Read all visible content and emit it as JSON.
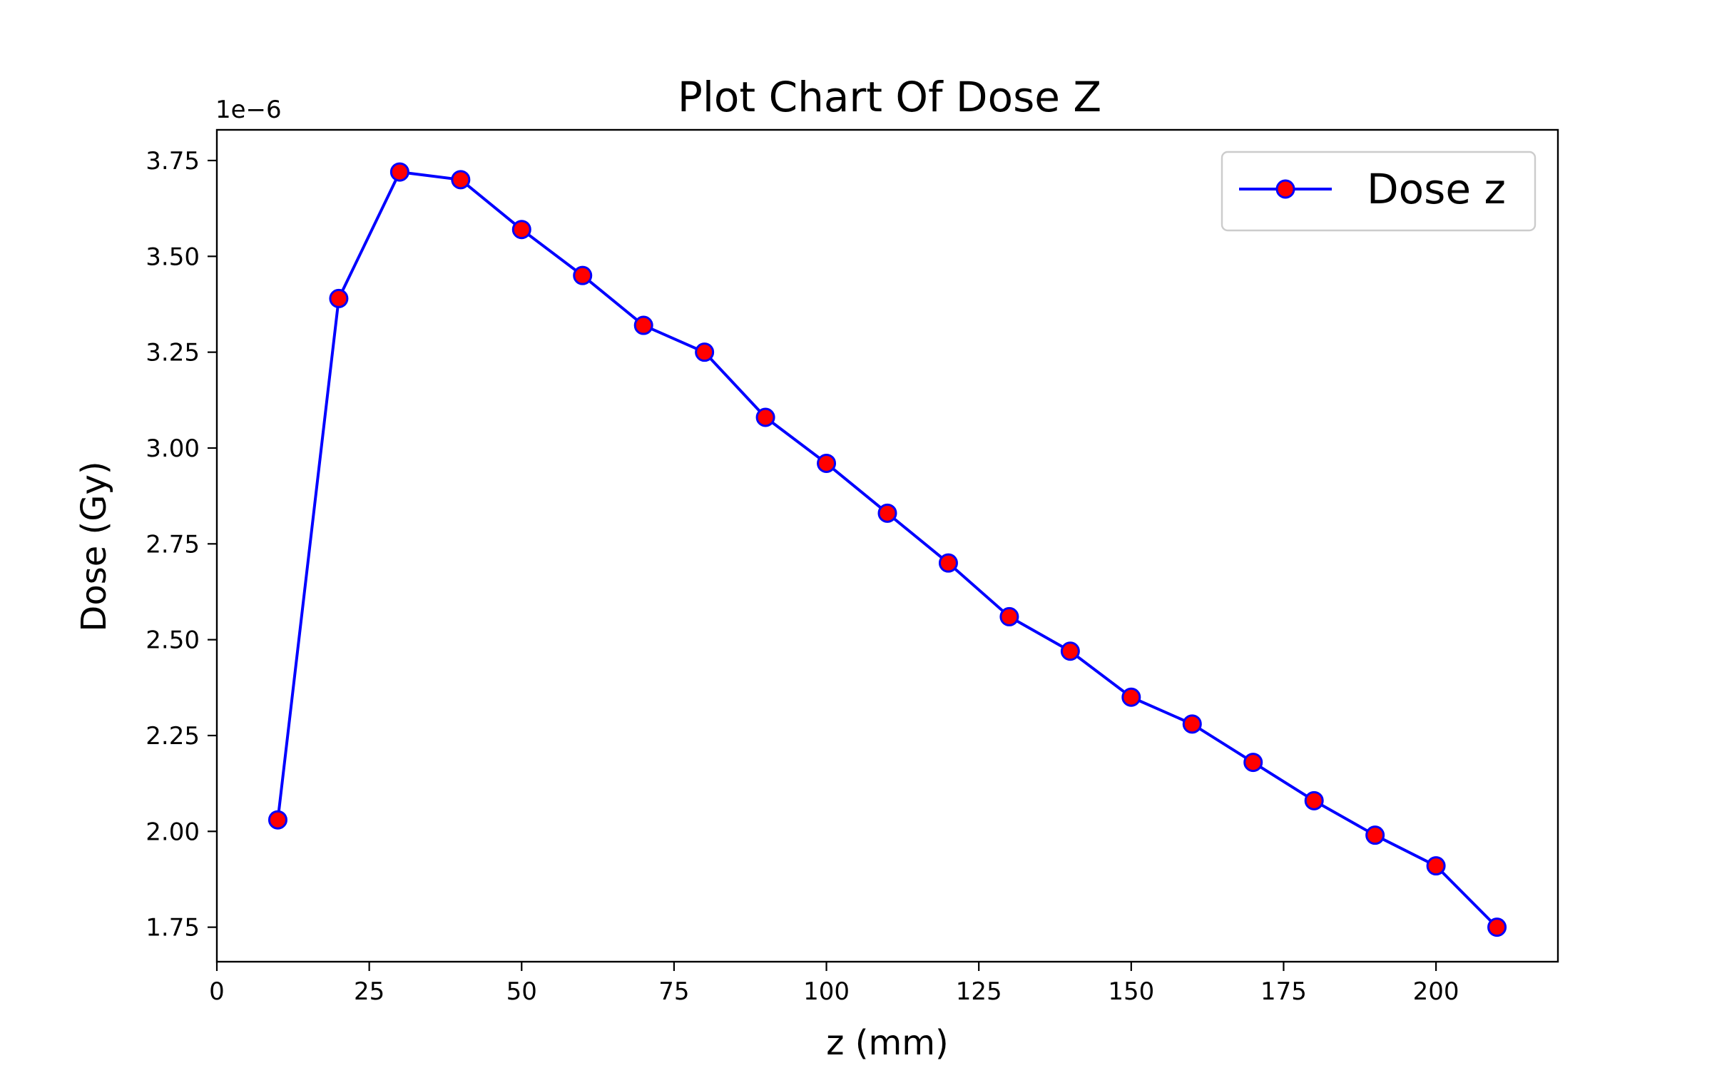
{
  "chart_data": {
    "type": "line",
    "title": "Plot Chart Of Dose Z",
    "xlabel": "z (mm)",
    "ylabel": "Dose (Gy)",
    "y_offset_label": "1e−6",
    "xlim": [
      0,
      220
    ],
    "ylim": [
      1.66,
      3.83
    ],
    "x_ticks": [
      0,
      25,
      50,
      75,
      100,
      125,
      150,
      175,
      200
    ],
    "y_ticks": [
      1.75,
      2.0,
      2.25,
      2.5,
      2.75,
      3.0,
      3.25,
      3.5,
      3.75
    ],
    "y_tick_labels": [
      "1.75",
      "2.00",
      "2.25",
      "2.50",
      "2.75",
      "3.00",
      "3.25",
      "3.50",
      "3.75"
    ],
    "grid": false,
    "legend_position": "top-right",
    "series": [
      {
        "name": "Dose z",
        "line_color": "#0000ff",
        "marker_face_color": "#ff0000",
        "marker_edge_color": "#0000ff",
        "x": [
          10,
          20,
          30,
          40,
          50,
          60,
          70,
          80,
          90,
          100,
          110,
          120,
          130,
          140,
          150,
          160,
          170,
          180,
          190,
          200,
          210
        ],
        "y": [
          2.03,
          3.39,
          3.72,
          3.7,
          3.57,
          3.45,
          3.32,
          3.25,
          3.08,
          2.96,
          2.83,
          2.7,
          2.56,
          2.47,
          2.35,
          2.28,
          2.18,
          2.08,
          1.99,
          1.91,
          1.75
        ]
      }
    ]
  }
}
